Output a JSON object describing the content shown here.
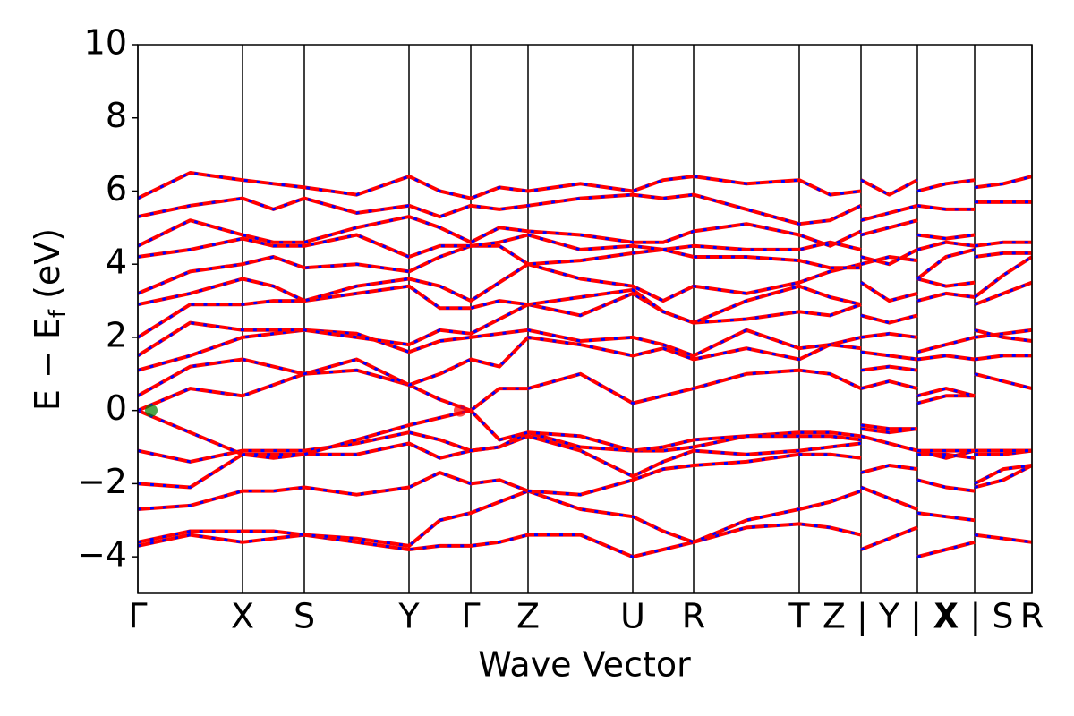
{
  "chart_data": {
    "type": "line",
    "ylabel": {
      "main": "E − E",
      "sub": "f",
      "unit": " (eV)"
    },
    "xlabel": "Wave Vector",
    "xlim": [
      0,
      9.99
    ],
    "ylim": [
      -5,
      10
    ],
    "yticks": [
      {
        "value": -4,
        "label": "−4"
      },
      {
        "value": -2,
        "label": "−2"
      },
      0,
      2,
      4,
      6,
      8,
      10
    ],
    "xticks": [
      {
        "value": 0,
        "label": "Γ"
      },
      {
        "value": 1.17,
        "label": "X"
      },
      {
        "value": 1.86,
        "label": "S"
      },
      {
        "value": 3.03,
        "label": "Y"
      },
      {
        "value": 3.72,
        "label": "Γ"
      },
      {
        "value": 4.36,
        "label": "Z"
      },
      {
        "value": 5.53,
        "label": "U"
      },
      {
        "value": 6.21,
        "label": "R"
      },
      {
        "value": 7.39,
        "label": "T"
      },
      {
        "value": 8.08,
        "label": "Z | Y"
      },
      {
        "value": 8.71,
        "label": "Y | X"
      },
      {
        "value": 9.35,
        "label": "X | S"
      },
      {
        "value": 9.99,
        "label": "R"
      }
    ],
    "line_color": "#ff0000",
    "dash_color": "#0000ff",
    "markers": [
      {
        "x": 0.15,
        "y": 0,
        "color": "#008000"
      },
      {
        "x": 3.6,
        "y": 0,
        "color": "#ff0000"
      }
    ],
    "x": [
      0,
      0.585,
      1.17,
      1.515,
      1.86,
      2.445,
      3.03,
      3.375,
      3.72,
      4.04,
      4.36,
      4.945,
      5.53,
      5.87,
      6.21,
      6.8,
      7.39,
      7.735,
      8.08,
      8.08,
      8.08,
      8.395,
      8.71,
      8.71,
      8.71,
      9.03,
      9.35,
      9.35,
      9.35,
      9.67,
      9.99
    ],
    "series": [
      {
        "values": [
          -3.7,
          -3.4,
          -3.6,
          -3.5,
          -3.4,
          -3.6,
          -3.8,
          -3.7,
          -3.7,
          -3.6,
          -3.4,
          -3.4,
          -4.0,
          -3.8,
          -3.6,
          -3.2,
          -3.1,
          -3.2,
          -3.4,
          null,
          -3.8,
          -3.5,
          -3.2,
          null,
          -4.0,
          -3.8,
          -3.6,
          null,
          -3.4,
          -3.5,
          -3.6
        ]
      },
      {
        "values": [
          -3.6,
          -3.3,
          -3.3,
          -3.3,
          -3.4,
          -3.5,
          -3.7,
          -3.0,
          -2.8,
          -2.5,
          -2.2,
          -2.7,
          -2.9,
          -3.3,
          -3.6,
          -3.0,
          -2.7,
          -2.5,
          -2.2,
          null,
          -2.1,
          -2.4,
          -2.7,
          null,
          -2.8,
          -2.9,
          -3.0,
          null,
          -2.1,
          -1.9,
          -1.5
        ]
      },
      {
        "values": [
          -2.7,
          -2.6,
          -2.2,
          -2.2,
          -2.1,
          -2.3,
          -2.1,
          -1.7,
          -2.0,
          -1.9,
          -2.2,
          -2.3,
          -1.9,
          -1.6,
          -1.5,
          -1.4,
          -1.2,
          -1.2,
          -1.3,
          null,
          -1.7,
          -1.5,
          -1.6,
          null,
          -1.9,
          -2.1,
          -2.2,
          null,
          -2.0,
          -1.6,
          -1.5
        ]
      },
      {
        "values": [
          -2.0,
          -2.1,
          -1.2,
          -1.3,
          -1.2,
          -1.2,
          -0.9,
          -1.3,
          -1.1,
          -1.0,
          -0.7,
          -1.1,
          -1.8,
          -1.4,
          -1.1,
          -1.2,
          -1.1,
          -1.0,
          -0.9,
          null,
          -0.7,
          -0.9,
          -1.1,
          null,
          -1.2,
          -1.2,
          -1.3,
          null,
          -1.2,
          -1.2,
          -1.1
        ]
      },
      {
        "values": [
          -1.1,
          -1.4,
          -1.1,
          -1.1,
          -1.1,
          -0.9,
          -0.6,
          -0.8,
          -1.1,
          -1.0,
          -0.6,
          -1.0,
          -1.1,
          -1.1,
          -1.0,
          -0.7,
          -0.6,
          -0.6,
          -0.7,
          null,
          -0.5,
          -0.6,
          -0.5,
          null,
          -1.1,
          -1.3,
          -1.1,
          null,
          -1.1,
          -1.1,
          -1.1
        ]
      },
      {
        "values": [
          0.0,
          -0.6,
          -1.2,
          -1.2,
          -1.2,
          -0.8,
          -0.4,
          -0.2,
          0.0,
          -0.8,
          -0.6,
          -0.7,
          -1.1,
          -1.0,
          -0.8,
          -0.7,
          -0.7,
          -0.7,
          -0.8,
          null,
          -0.4,
          -0.5,
          -0.5,
          null,
          -1.1,
          -1.1,
          -1.1,
          null,
          -1.1,
          -1.1,
          -1.1
        ]
      },
      {
        "values": [
          0.0,
          0.6,
          0.4,
          0.7,
          1.0,
          1.1,
          0.7,
          0.3,
          0.0,
          0.6,
          0.6,
          1.0,
          0.2,
          0.4,
          0.6,
          1.0,
          1.1,
          1.0,
          0.6,
          null,
          0.6,
          0.8,
          0.6,
          null,
          0.2,
          0.4,
          0.4,
          null,
          1.0,
          0.8,
          0.6
        ]
      },
      {
        "values": [
          0.4,
          1.2,
          1.4,
          1.2,
          1.0,
          1.4,
          0.7,
          1.0,
          1.4,
          1.2,
          2.0,
          1.8,
          1.5,
          1.7,
          1.4,
          1.7,
          1.4,
          1.8,
          2.0,
          null,
          1.1,
          1.2,
          1.1,
          null,
          0.4,
          0.6,
          0.4,
          null,
          1.4,
          1.5,
          1.5
        ]
      },
      {
        "values": [
          1.1,
          1.5,
          2.0,
          2.1,
          2.2,
          2.1,
          1.6,
          1.9,
          2.0,
          2.1,
          2.2,
          1.9,
          2.0,
          1.8,
          1.5,
          2.2,
          1.7,
          1.8,
          1.7,
          null,
          1.6,
          1.5,
          1.4,
          null,
          1.4,
          1.5,
          1.4,
          null,
          2.0,
          2.1,
          2.2
        ]
      },
      {
        "values": [
          1.5,
          2.4,
          2.2,
          2.2,
          2.2,
          2.0,
          1.8,
          2.2,
          2.1,
          2.5,
          2.9,
          2.6,
          3.2,
          2.7,
          2.4,
          2.5,
          2.7,
          2.6,
          2.9,
          null,
          2.0,
          2.1,
          2.0,
          null,
          1.6,
          1.8,
          2.0,
          null,
          2.2,
          2.0,
          1.9
        ]
      },
      {
        "values": [
          2.0,
          2.9,
          2.9,
          3.0,
          3.0,
          3.2,
          3.4,
          2.8,
          2.8,
          3.0,
          2.9,
          3.1,
          3.3,
          2.7,
          2.4,
          3.0,
          3.4,
          3.1,
          2.9,
          null,
          2.6,
          2.4,
          2.6,
          null,
          3.0,
          3.2,
          3.1,
          null,
          2.9,
          3.2,
          3.5
        ]
      },
      {
        "values": [
          2.9,
          3.2,
          3.6,
          3.4,
          3.0,
          3.4,
          3.6,
          3.4,
          3.0,
          3.5,
          4.0,
          3.6,
          3.4,
          3.0,
          3.4,
          3.2,
          3.5,
          3.8,
          4.0,
          null,
          3.5,
          3.0,
          3.2,
          null,
          3.6,
          3.4,
          3.5,
          null,
          3.1,
          3.7,
          4.2
        ]
      },
      {
        "values": [
          3.2,
          3.8,
          4.0,
          4.2,
          3.9,
          4.0,
          3.8,
          4.2,
          4.5,
          4.5,
          4.0,
          4.1,
          4.3,
          4.4,
          4.2,
          4.2,
          4.1,
          3.9,
          3.9,
          null,
          4.0,
          4.2,
          4.1,
          null,
          3.6,
          4.2,
          4.4,
          null,
          4.2,
          4.3,
          4.3
        ]
      },
      {
        "values": [
          4.2,
          4.4,
          4.7,
          4.5,
          4.5,
          4.8,
          4.2,
          4.5,
          4.5,
          4.6,
          4.8,
          4.4,
          4.5,
          4.4,
          4.5,
          4.4,
          4.4,
          4.6,
          4.4,
          null,
          4.2,
          4.0,
          4.4,
          null,
          4.4,
          4.6,
          4.5,
          null,
          4.5,
          4.6,
          4.6
        ]
      },
      {
        "values": [
          4.5,
          5.2,
          4.8,
          4.6,
          4.6,
          5.0,
          5.3,
          5.0,
          4.6,
          5.0,
          4.9,
          4.8,
          4.6,
          4.6,
          4.9,
          5.1,
          4.8,
          4.5,
          4.9,
          null,
          4.8,
          5.0,
          5.2,
          null,
          4.8,
          4.7,
          4.8,
          null,
          5.7,
          5.7,
          5.7
        ]
      },
      {
        "values": [
          5.3,
          5.6,
          5.8,
          5.5,
          5.8,
          5.4,
          5.6,
          5.3,
          5.6,
          5.5,
          5.6,
          5.8,
          5.9,
          5.8,
          5.9,
          5.5,
          5.1,
          5.2,
          5.6,
          null,
          5.2,
          5.4,
          5.6,
          null,
          5.6,
          5.5,
          5.5,
          null,
          5.7,
          5.7,
          5.7
        ]
      },
      {
        "values": [
          5.8,
          6.5,
          6.3,
          6.2,
          6.1,
          5.9,
          6.4,
          6.0,
          5.8,
          6.1,
          6.0,
          6.2,
          6.0,
          6.3,
          6.4,
          6.2,
          6.3,
          5.9,
          6.0,
          null,
          6.3,
          5.9,
          6.3,
          null,
          6.0,
          6.2,
          6.3,
          null,
          6.1,
          6.2,
          6.4
        ]
      }
    ]
  }
}
